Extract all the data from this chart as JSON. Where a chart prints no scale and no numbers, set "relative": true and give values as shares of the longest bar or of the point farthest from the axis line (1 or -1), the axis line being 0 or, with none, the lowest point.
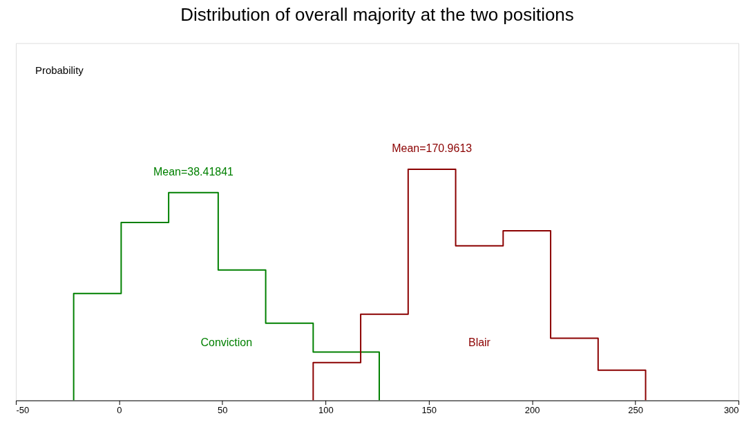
{
  "chart_data": {
    "type": "step",
    "title": "Distribution of overall majority at the two positions",
    "relative": true,
    "xlim": [
      -50,
      300
    ],
    "xticks": [
      -50,
      0,
      50,
      100,
      150,
      200,
      250,
      300
    ],
    "grid": false,
    "legend": false,
    "series": [
      {
        "name": "Conviction",
        "color": "#008000",
        "x": [
          -22,
          -22,
          1,
          24,
          48,
          71,
          94,
          126,
          126
        ],
        "values": [
          0,
          0.463,
          0.77,
          0.899,
          0.564,
          0.334,
          0.209,
          0.209,
          0
        ]
      },
      {
        "name": "Blair",
        "color": "#8b0000",
        "x": [
          94,
          94,
          117,
          140,
          163,
          186,
          209,
          232,
          255,
          255
        ],
        "values": [
          0,
          0.164,
          0.373,
          1,
          0.669,
          0.734,
          0.269,
          0.131,
          0.131,
          0
        ]
      }
    ],
    "annotations": [
      "Mean=38.41841",
      "Mean=170.9613",
      "Probability"
    ]
  }
}
